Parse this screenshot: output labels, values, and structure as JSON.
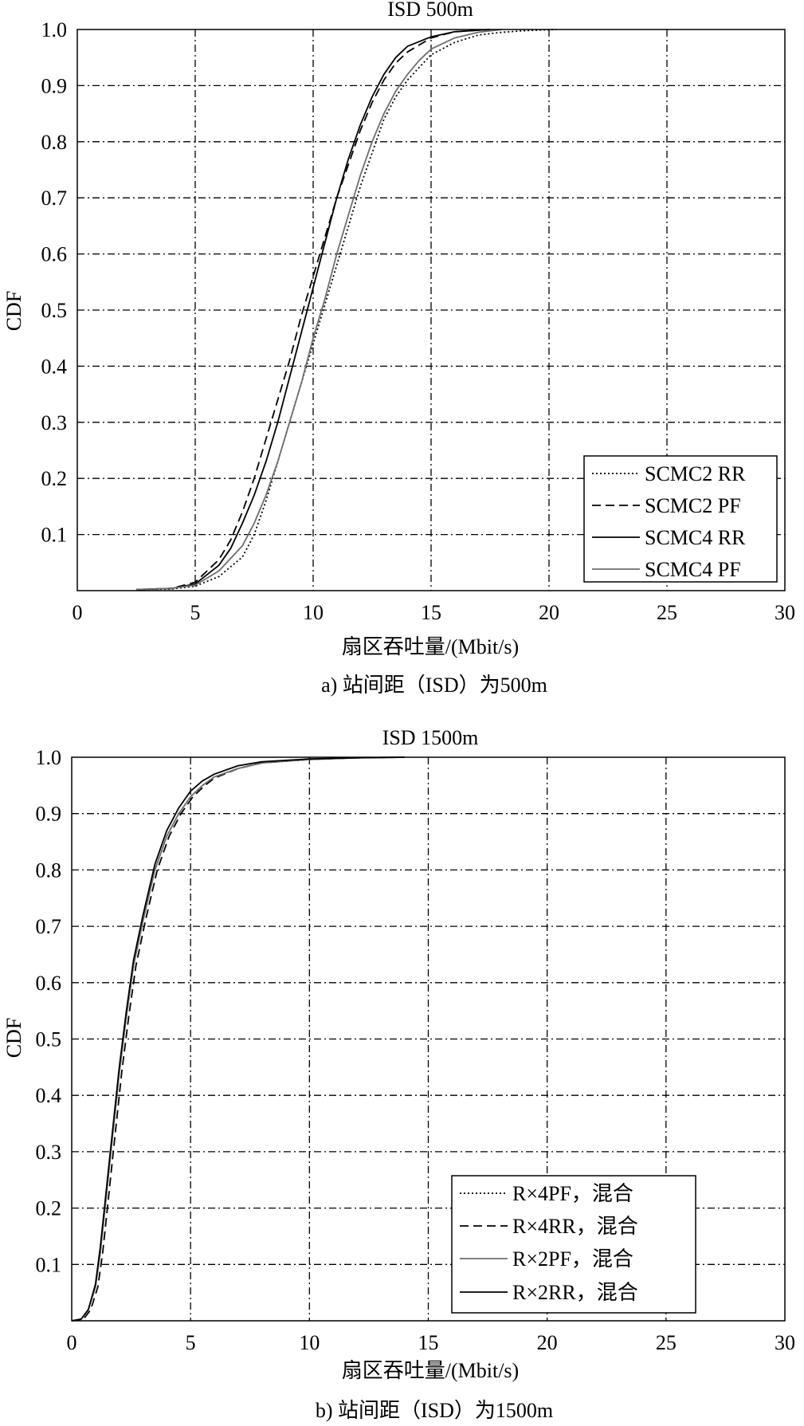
{
  "chart_data": [
    {
      "type": "line",
      "title": "ISD 500m",
      "xlabel": "扇区吞吐量/(Mbit/s)",
      "ylabel": "CDF",
      "caption": "a) 站间距（ISD）为500m",
      "xlim": [
        0,
        30
      ],
      "ylim": [
        0,
        1.0
      ],
      "xticks": [
        "0",
        "5",
        "10",
        "15",
        "20",
        "25",
        "30"
      ],
      "yticks": [
        "0.1",
        "0.2",
        "0.3",
        "0.4",
        "0.5",
        "0.6",
        "0.7",
        "0.8",
        "0.9",
        "1.0"
      ],
      "grid": true,
      "legend_position": "bottom-right",
      "series": [
        {
          "name": "SCMC2 RR",
          "style": "dotted",
          "color": "#000000",
          "x": [
            2.5,
            4.0,
            5.0,
            6.0,
            7.0,
            7.5,
            8.0,
            8.5,
            9.0,
            9.5,
            10.0,
            10.5,
            11.0,
            11.5,
            12.0,
            12.5,
            13.0,
            13.5,
            14.0,
            15.0,
            16.0,
            17.0,
            18.0,
            19.0,
            20.3
          ],
          "y": [
            0.002,
            0.003,
            0.008,
            0.025,
            0.06,
            0.1,
            0.16,
            0.23,
            0.3,
            0.37,
            0.44,
            0.51,
            0.58,
            0.65,
            0.72,
            0.78,
            0.84,
            0.88,
            0.91,
            0.955,
            0.977,
            0.99,
            0.995,
            0.998,
            1.0
          ]
        },
        {
          "name": "SCMC2 PF",
          "style": "dashed",
          "color": "#000000",
          "x": [
            2.5,
            4.0,
            5.0,
            6.0,
            6.5,
            7.0,
            7.5,
            8.0,
            8.5,
            9.0,
            9.5,
            10.0,
            10.5,
            11.0,
            11.5,
            12.0,
            12.5,
            13.0,
            13.5,
            14.0,
            15.0,
            16.0,
            17.5
          ],
          "y": [
            0.002,
            0.004,
            0.015,
            0.055,
            0.09,
            0.14,
            0.2,
            0.27,
            0.34,
            0.41,
            0.49,
            0.56,
            0.63,
            0.7,
            0.76,
            0.82,
            0.87,
            0.91,
            0.94,
            0.96,
            0.985,
            0.996,
            1.0
          ]
        },
        {
          "name": "SCMC4 RR",
          "style": "solid",
          "color": "#000000",
          "x": [
            2.5,
            4.0,
            5.0,
            6.0,
            6.5,
            7.0,
            7.5,
            8.0,
            8.5,
            9.0,
            9.5,
            10.0,
            10.5,
            11.0,
            11.5,
            12.0,
            12.5,
            13.0,
            13.5,
            14.0,
            15.0,
            16.0,
            17.5
          ],
          "y": [
            0.002,
            0.004,
            0.012,
            0.045,
            0.075,
            0.12,
            0.17,
            0.23,
            0.3,
            0.38,
            0.46,
            0.54,
            0.62,
            0.7,
            0.77,
            0.83,
            0.88,
            0.92,
            0.95,
            0.97,
            0.987,
            0.996,
            1.0
          ]
        },
        {
          "name": "SCMC4 PF",
          "style": "solid",
          "color": "#6e6e6e",
          "x": [
            2.5,
            4.0,
            5.0,
            6.0,
            7.0,
            7.5,
            8.0,
            8.5,
            9.0,
            9.5,
            10.0,
            10.5,
            11.0,
            11.5,
            12.0,
            12.5,
            13.0,
            13.5,
            14.0,
            14.5,
            15.0,
            16.0,
            17.0,
            18.0
          ],
          "y": [
            0.002,
            0.004,
            0.01,
            0.035,
            0.08,
            0.12,
            0.17,
            0.23,
            0.3,
            0.37,
            0.45,
            0.52,
            0.6,
            0.67,
            0.74,
            0.8,
            0.85,
            0.89,
            0.92,
            0.945,
            0.965,
            0.985,
            0.995,
            1.0
          ]
        }
      ]
    },
    {
      "type": "line",
      "title": "ISD 1500m",
      "xlabel": "扇区吞吐量/(Mbit/s)",
      "ylabel": "CDF",
      "caption": "b) 站间距（ISD）为1500m",
      "xlim": [
        0,
        30
      ],
      "ylim": [
        0,
        1.0
      ],
      "xticks": [
        "0",
        "5",
        "10",
        "15",
        "20",
        "25",
        "30"
      ],
      "yticks": [
        "0.1",
        "0.2",
        "0.3",
        "0.4",
        "0.5",
        "0.6",
        "0.7",
        "0.8",
        "0.9",
        "1.0"
      ],
      "grid": true,
      "legend_position": "bottom-right",
      "series": [
        {
          "name": "R×4PF，混合",
          "style": "dotted",
          "color": "#000000",
          "x": [
            0.0,
            0.4,
            0.7,
            1.0,
            1.2,
            1.4,
            1.6,
            1.8,
            2.0,
            2.3,
            2.6,
            3.0,
            3.5,
            4.0,
            4.5,
            5.0,
            5.5,
            6.0,
            7.0,
            8.0,
            10.0,
            12.0,
            14.0
          ],
          "y": [
            0.0,
            0.003,
            0.02,
            0.06,
            0.12,
            0.2,
            0.28,
            0.36,
            0.44,
            0.54,
            0.63,
            0.71,
            0.8,
            0.86,
            0.9,
            0.93,
            0.95,
            0.965,
            0.98,
            0.99,
            0.996,
            0.999,
            1.0
          ]
        },
        {
          "name": "R×4RR，混合",
          "style": "dashed",
          "color": "#000000",
          "x": [
            0.0,
            0.5,
            0.8,
            1.1,
            1.3,
            1.5,
            1.7,
            1.9,
            2.1,
            2.4,
            2.7,
            3.1,
            3.6,
            4.1,
            4.6,
            5.1,
            5.6,
            6.0,
            7.0,
            8.0,
            10.0,
            12.0,
            14.0
          ],
          "y": [
            0.0,
            0.003,
            0.02,
            0.06,
            0.12,
            0.2,
            0.28,
            0.36,
            0.44,
            0.54,
            0.63,
            0.71,
            0.8,
            0.86,
            0.9,
            0.93,
            0.95,
            0.963,
            0.98,
            0.99,
            0.996,
            0.999,
            1.0
          ]
        },
        {
          "name": "R×2PF，混合",
          "style": "solid",
          "color": "#6e6e6e",
          "x": [
            0.0,
            0.4,
            0.7,
            1.0,
            1.2,
            1.4,
            1.6,
            1.8,
            2.0,
            2.3,
            2.6,
            3.0,
            3.5,
            4.0,
            4.5,
            5.0,
            5.5,
            6.0,
            7.0,
            8.0,
            10.0,
            12.0,
            14.0
          ],
          "y": [
            0.0,
            0.003,
            0.02,
            0.06,
            0.12,
            0.2,
            0.28,
            0.36,
            0.44,
            0.54,
            0.63,
            0.71,
            0.8,
            0.86,
            0.9,
            0.93,
            0.95,
            0.965,
            0.98,
            0.99,
            0.996,
            0.999,
            1.0
          ]
        },
        {
          "name": "R×2RR，混合",
          "style": "solid",
          "color": "#000000",
          "x": [
            0.0,
            0.4,
            0.7,
            1.0,
            1.2,
            1.4,
            1.6,
            1.8,
            2.0,
            2.3,
            2.6,
            3.0,
            3.5,
            4.0,
            4.5,
            5.0,
            5.5,
            6.0,
            7.0,
            8.0,
            10.0,
            12.0,
            14.0
          ],
          "y": [
            0.0,
            0.003,
            0.02,
            0.065,
            0.13,
            0.21,
            0.29,
            0.37,
            0.45,
            0.55,
            0.64,
            0.72,
            0.81,
            0.87,
            0.91,
            0.94,
            0.958,
            0.97,
            0.985,
            0.992,
            0.997,
            0.999,
            1.0
          ]
        }
      ]
    }
  ]
}
